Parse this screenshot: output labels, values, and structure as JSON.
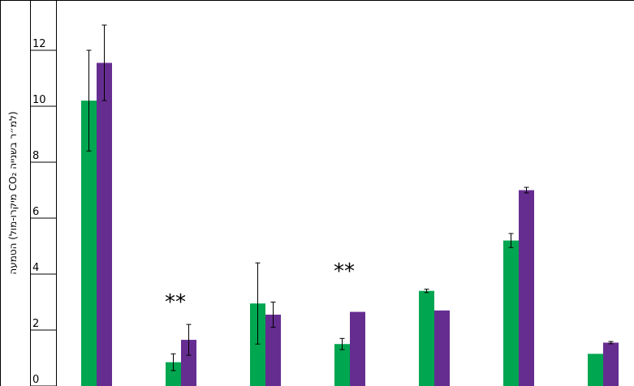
{
  "chart_data": {
    "type": "bar",
    "ylabel": "הטמעה (מיקרו-מול CO₂ למ״ר בשנייה)",
    "ylim": [
      0,
      13.2
    ],
    "yticks": [
      0,
      2,
      4,
      6,
      8,
      10,
      12
    ],
    "grid": false,
    "categories": [
      "",
      "",
      "",
      "",
      "",
      "",
      ""
    ],
    "series": [
      {
        "color": "#00a650",
        "values": [
          10.2,
          0.85,
          2.95,
          1.5,
          3.4,
          5.2,
          1.15
        ],
        "errors": [
          1.8,
          0.3,
          1.45,
          0.2,
          0.06,
          0.25,
          0
        ]
      },
      {
        "color": "#662d91",
        "values": [
          11.55,
          1.65,
          2.55,
          2.65,
          2.7,
          7.0,
          1.55
        ],
        "errors": [
          1.35,
          0.55,
          0.45,
          0,
          0,
          0.1,
          0.04
        ]
      }
    ],
    "annotations": [
      {
        "category_index": 1,
        "text": "**",
        "y": 3.05
      },
      {
        "category_index": 3,
        "text": "**",
        "y": 4.15
      }
    ]
  }
}
